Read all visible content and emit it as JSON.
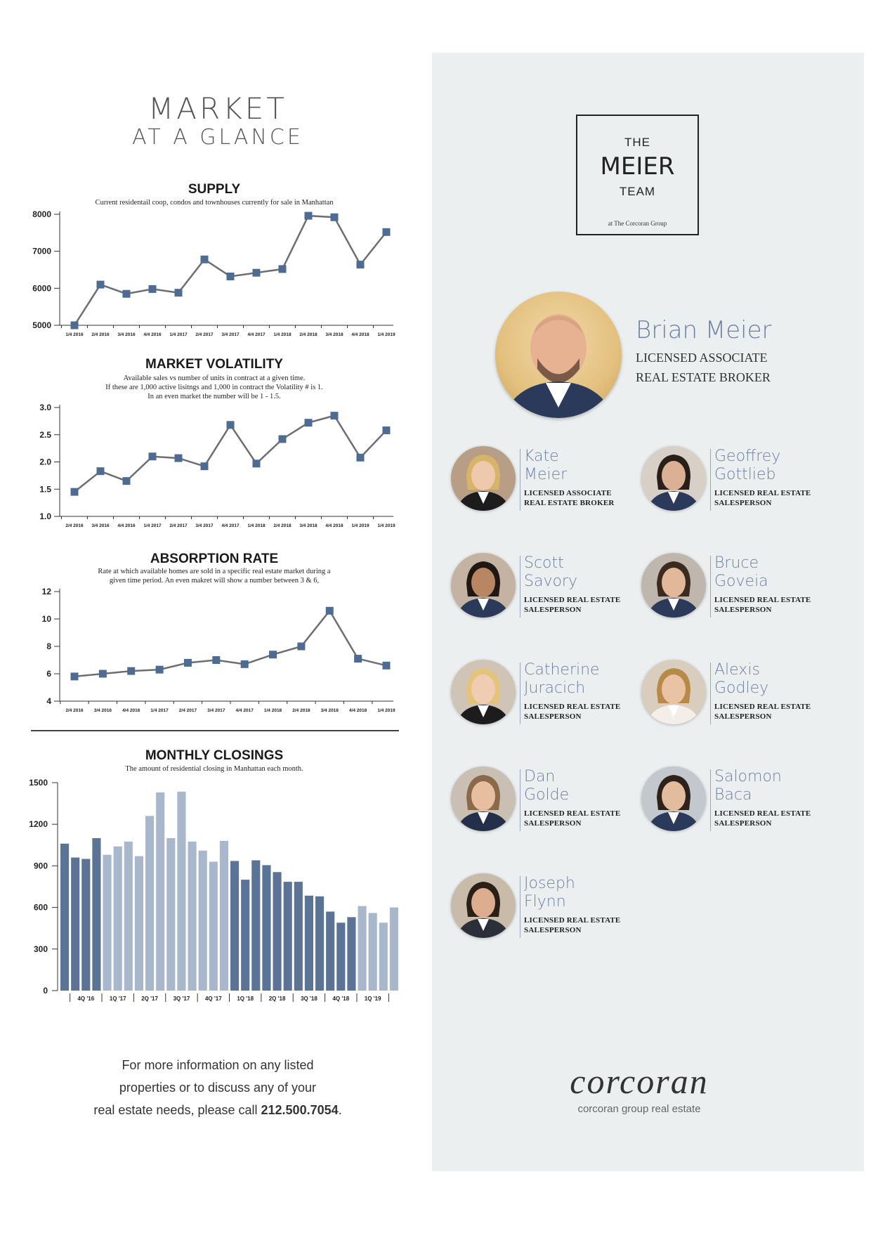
{
  "market": {
    "title_line1": "MARKET",
    "title_line2": "AT A GLANCE"
  },
  "supply": {
    "title": "SUPPLY",
    "subtitle": "Current residentail coop, condos and townhouses currently for sale in Manhattan"
  },
  "volatility": {
    "title": "MARKET VOLATILITY",
    "subtitle_1": "Available sales vs number of units in contract at a given time.",
    "subtitle_2": "If these are 1,000 active lisitngs and 1,000 in contract the Volatility # is 1.",
    "subtitle_3": "In an even market the number will be 1 - 1.5."
  },
  "absorption": {
    "title": "ABSORPTION RATE",
    "subtitle_1": "Rate at which available homes are sold in a specific real estate market during a",
    "subtitle_2": "given time period. An even makret will show a number between 3 & 6,"
  },
  "closings": {
    "title": "MONTHLY CLOSINGS",
    "subtitle": "The amount of residential closing in Manhattan each month."
  },
  "chart_data": [
    {
      "type": "line",
      "title": "SUPPLY",
      "categories": [
        "1/4 2016",
        "2/4 2016",
        "3/4 2016",
        "4/4 2016",
        "1/4 2017",
        "2/4 2017",
        "3/4 2017",
        "4/4 2017",
        "1/4 2018",
        "2/4 2018",
        "3/4 2018",
        "4/4 2018",
        "1/4 2019"
      ],
      "values": [
        5000,
        6100,
        5850,
        5980,
        5880,
        6780,
        6320,
        6420,
        6520,
        7960,
        7920,
        6640,
        7520
      ],
      "yticks": [
        5000,
        6000,
        7000,
        8000
      ],
      "ylim": [
        5000,
        8000
      ]
    },
    {
      "type": "line",
      "title": "MARKET VOLATILITY",
      "categories": [
        "2/4 2016",
        "3/4 2016",
        "4/4 2016",
        "1/4 2017",
        "2/4 2017",
        "3/4 2017",
        "4/4 2017",
        "1/4 2018",
        "2/4 2018",
        "3/4 2018",
        "4/4 2018",
        "1/4 2019",
        "1/4 2019"
      ],
      "values": [
        1.45,
        1.83,
        1.65,
        2.1,
        2.07,
        1.92,
        2.68,
        1.97,
        2.42,
        2.72,
        2.85,
        2.08,
        2.58
      ],
      "yticks": [
        "1.0",
        "1.5",
        "2.0",
        "2.5",
        "3.0"
      ],
      "ylim": [
        1.0,
        3.0
      ]
    },
    {
      "type": "line",
      "title": "ABSORPTION RATE",
      "categories": [
        "2/4 2016",
        "3/4 2016",
        "4/4 2016",
        "1/4 2017",
        "2/4 2017",
        "3/4 2017",
        "4/4 2017",
        "1/4 2018",
        "2/4 2018",
        "3/4 2018",
        "4/4 2018",
        "1/4 2019"
      ],
      "values": [
        5.8,
        6.0,
        6.2,
        6.3,
        6.8,
        7.0,
        6.7,
        7.4,
        8.0,
        10.6,
        7.1,
        6.6
      ],
      "yticks": [
        4,
        6,
        8,
        10,
        12
      ],
      "ylim": [
        4,
        12
      ]
    },
    {
      "type": "bar",
      "title": "MONTHLY CLOSINGS",
      "values": [
        1060,
        960,
        950,
        1100,
        980,
        1040,
        1075,
        970,
        1260,
        1430,
        1100,
        1435,
        1075,
        1010,
        930,
        1080,
        935,
        800,
        940,
        905,
        855,
        785,
        785,
        685,
        680,
        570,
        490,
        530,
        610,
        560,
        490,
        600
      ],
      "colors": [
        "#5b7394",
        "#5b7394",
        "#5b7394",
        "#5b7394",
        "#a9b7cd",
        "#a9b7cd",
        "#a9b7cd",
        "#a9b7cd",
        "#a9b7cd",
        "#a9b7cd",
        "#a9b7cd",
        "#a9b7cd",
        "#a9b7cd",
        "#a9b7cd",
        "#a9b7cd",
        "#a9b7cd",
        "#5b7394",
        "#5b7394",
        "#5b7394",
        "#5b7394",
        "#5b7394",
        "#5b7394",
        "#5b7394",
        "#5b7394",
        "#5b7394",
        "#5b7394",
        "#5b7394",
        "#5b7394",
        "#a9b7cd",
        "#a9b7cd",
        "#a9b7cd",
        "#a9b7cd"
      ],
      "quarter_labels": [
        "4Q '16",
        "1Q '17",
        "2Q '17",
        "3Q '17",
        "4Q '17",
        "1Q '18",
        "2Q '18",
        "3Q '18",
        "4Q '18",
        "1Q '19"
      ],
      "yticks": [
        0,
        300,
        600,
        900,
        1200,
        1500
      ],
      "ylim": [
        0,
        1500
      ]
    }
  ],
  "footer": {
    "line1": "For more information on any listed",
    "line2": "properties or to discuss any of your",
    "line3_pre": "real estate needs, please call ",
    "phone": "212.500.7054",
    "line3_post": "."
  },
  "logo": {
    "the": "THE",
    "meier": "MEIER",
    "team": "TEAM",
    "group": "at The Corcoran Group"
  },
  "lead": {
    "name": "Brian Meier",
    "title_1": "LICENSED ASSOCIATE",
    "title_2": "REAL ESTATE BROKER"
  },
  "agents": [
    {
      "name": "Kate\nMeier",
      "role": "LICENSED ASSOCIATE\nREAL ESTATE BROKER"
    },
    {
      "name": "Geoffrey\nGottlieb",
      "role": "LICENSED REAL ESTATE\nSALESPERSON"
    },
    {
      "name": "Scott\nSavory",
      "role": "LICENSED REAL ESTATE\nSALESPERSON"
    },
    {
      "name": "Bruce\nGoveia",
      "role": "LICENSED REAL ESTATE\nSALESPERSON"
    },
    {
      "name": "Catherine\nJuracich",
      "role": "LICENSED REAL ESTATE\nSALESPERSON"
    },
    {
      "name": "Alexis\nGodley",
      "role": "LICENSED REAL ESTATE\nSALESPERSON"
    },
    {
      "name": "Dan\nGolde",
      "role": "LICENSED REAL ESTATE\nSALESPERSON"
    },
    {
      "name": "Salomon\nBaca",
      "role": "LICENSED REAL ESTATE\nSALESPERSON"
    },
    {
      "name": "Joseph\nFlynn",
      "role": "LICENSED REAL ESTATE\nSALESPERSON"
    }
  ],
  "brand": {
    "wordmark": "corcoran",
    "tagline": "corcoran group real estate"
  }
}
